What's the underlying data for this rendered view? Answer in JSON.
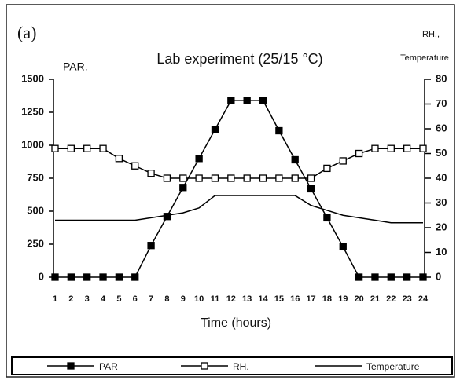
{
  "chart_data": {
    "type": "line",
    "panel_label": "(a)",
    "title": "Lab experiment (25/15 °C)",
    "ylabel": "PAR.",
    "y2label_1": "RH.,",
    "y2label_2": "Temperature",
    "xlabel": "Time (hours)",
    "x": [
      1,
      2,
      3,
      4,
      5,
      6,
      7,
      8,
      9,
      10,
      11,
      12,
      13,
      14,
      15,
      16,
      17,
      18,
      19,
      20,
      21,
      22,
      23,
      24
    ],
    "xlim": [
      1,
      24
    ],
    "xticks": [
      1,
      2,
      3,
      4,
      5,
      6,
      7,
      8,
      9,
      10,
      11,
      12,
      13,
      14,
      15,
      16,
      17,
      18,
      19,
      20,
      21,
      22,
      23,
      24
    ],
    "ylim": [
      0,
      1500
    ],
    "yticks": [
      0,
      250,
      500,
      750,
      1000,
      1250,
      1500
    ],
    "y2lim": [
      0,
      80
    ],
    "y2ticks": [
      0,
      10,
      20,
      30,
      40,
      50,
      60,
      70,
      80
    ],
    "series": [
      {
        "name": "PAR",
        "color": "#000000",
        "marker": "filled-square",
        "values": [
          0,
          0,
          0,
          0,
          0,
          0,
          240,
          460,
          680,
          900,
          1120,
          1340,
          1340,
          1340,
          1110,
          890,
          670,
          450,
          230,
          0,
          0,
          0,
          0,
          0
        ]
      },
      {
        "name": "RH.",
        "color": "#000000",
        "marker": "open-square",
        "axis": "y2",
        "values": [
          52,
          52,
          52,
          52,
          48,
          45,
          42,
          40,
          40,
          40,
          40,
          40,
          40,
          40,
          40,
          40,
          40,
          44,
          47,
          50,
          52,
          52,
          52,
          52
        ]
      },
      {
        "name": "Temperature",
        "color": "#000000",
        "marker": "none",
        "axis": "y2",
        "values": [
          23,
          23,
          23,
          23,
          23,
          23,
          24,
          25,
          26,
          28,
          33,
          33,
          33,
          33,
          33,
          33,
          29,
          27,
          25,
          24,
          23,
          22,
          22,
          22
        ]
      }
    ]
  }
}
